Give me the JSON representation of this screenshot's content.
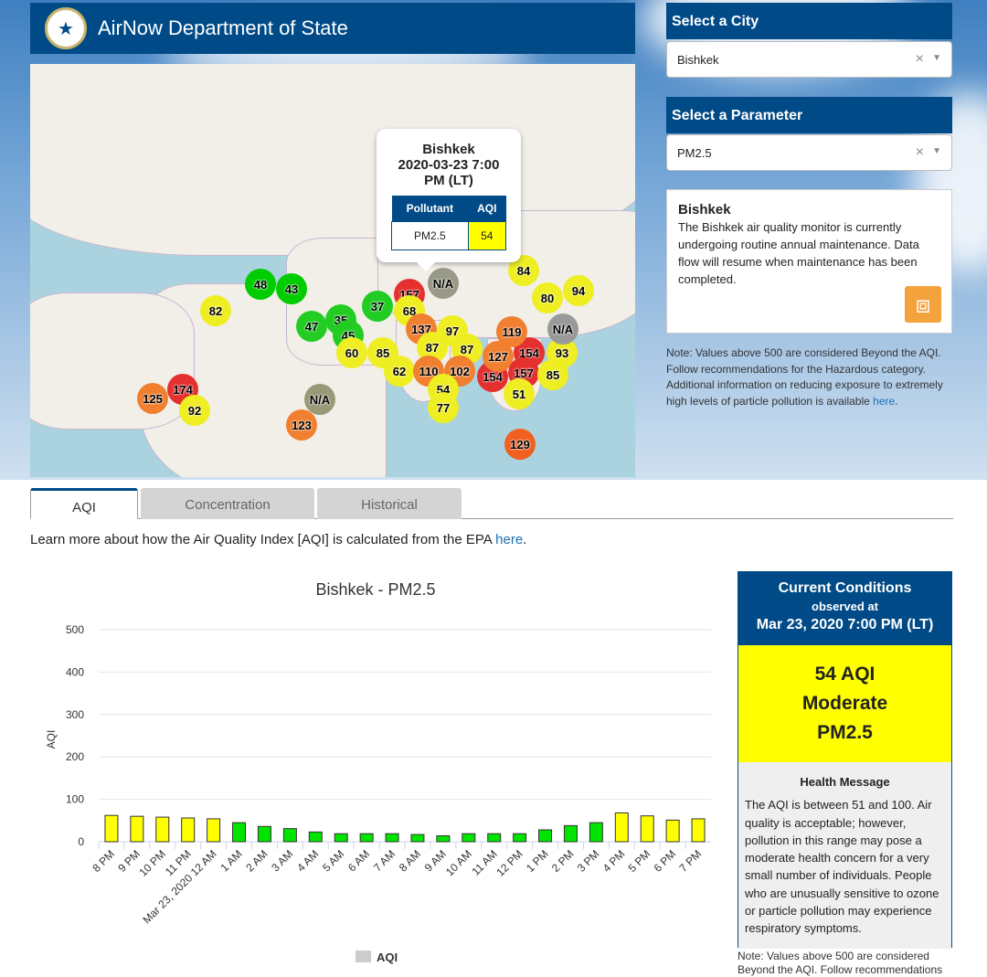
{
  "header": {
    "title": "AirNow Department of State",
    "logo": "department-of-state-seal"
  },
  "city_select": {
    "label": "Select a City",
    "value": "Bishkek"
  },
  "parameter_select": {
    "label": "Select a Parameter",
    "value": "PM2.5"
  },
  "info": {
    "title": "Bishkek",
    "text": "The Bishkek air quality monitor is currently undergoing routine annual maintenance. Data flow will resume when maintenance has been completed.",
    "icon": "rss-icon"
  },
  "note": {
    "text": "Note: Values above 500 are considered Beyond the AQI. Follow recommendations for the Hazardous category. Additional information on reducing exposure to extremely high levels of particle pollution is available ",
    "link": "here",
    "end": "."
  },
  "popup": {
    "city": "Bishkek",
    "datetime": "2020-03-23 7:00 PM (LT)",
    "col_pollutant": "Pollutant",
    "col_aqi": "AQI",
    "pollutant": "PM2.5",
    "aqi": "54",
    "aqi_color": "#ffff00"
  },
  "map_markers": [
    {
      "v": "48",
      "c": "#00cc00"
    },
    {
      "v": "43",
      "c": "#00cc00"
    },
    {
      "v": "82",
      "c": "#eeee22"
    },
    {
      "v": "37",
      "c": "#22cc22"
    },
    {
      "v": "47",
      "c": "#22cc22"
    },
    {
      "v": "35",
      "c": "#22cc22"
    },
    {
      "v": "45",
      "c": "#22cc22"
    },
    {
      "v": "60",
      "c": "#eeee22"
    },
    {
      "v": "85",
      "c": "#eeee22"
    },
    {
      "v": "157",
      "c": "#e53030"
    },
    {
      "v": "N/A",
      "c": "#999988"
    },
    {
      "v": "68",
      "c": "#eeee22"
    },
    {
      "v": "137",
      "c": "#f08030"
    },
    {
      "v": "97",
      "c": "#eeee22"
    },
    {
      "v": "87",
      "c": "#eeee22"
    },
    {
      "v": "87",
      "c": "#eeee22"
    },
    {
      "v": "62",
      "c": "#eeee22"
    },
    {
      "v": "110",
      "c": "#f08030"
    },
    {
      "v": "102",
      "c": "#f08030"
    },
    {
      "v": "54",
      "c": "#eeee22"
    },
    {
      "v": "77",
      "c": "#eeee22"
    },
    {
      "v": "154",
      "c": "#e53030"
    },
    {
      "v": "127",
      "c": "#f08030"
    },
    {
      "v": "154",
      "c": "#e53030"
    },
    {
      "v": "157",
      "c": "#e53030"
    },
    {
      "v": "85",
      "c": "#eeee22"
    },
    {
      "v": "93",
      "c": "#eeee22"
    },
    {
      "v": "51",
      "c": "#eeee22"
    },
    {
      "v": "119",
      "c": "#f08030"
    },
    {
      "v": "84",
      "c": "#eeee22"
    },
    {
      "v": "80",
      "c": "#eeee22"
    },
    {
      "v": "94",
      "c": "#eeee22"
    },
    {
      "v": "N/A",
      "c": "#999999"
    },
    {
      "v": "129",
      "c": "#f06020"
    },
    {
      "v": "174",
      "c": "#e53030"
    },
    {
      "v": "125",
      "c": "#f08030"
    },
    {
      "v": "92",
      "c": "#eeee22"
    },
    {
      "v": "N/A",
      "c": "#999977"
    },
    {
      "v": "123",
      "c": "#f08030"
    }
  ],
  "tabs": [
    {
      "label": "AQI",
      "active": true
    },
    {
      "label": "Concentration"
    },
    {
      "label": "Historical"
    }
  ],
  "learn": {
    "text": "Learn more about how the Air Quality Index [AQI] is calculated from the EPA ",
    "link": "here",
    "end": "."
  },
  "chart_data": {
    "type": "bar",
    "title": "Bishkek - PM2.5",
    "ylabel": "AQI",
    "xlabel": "",
    "ylim": [
      0,
      500
    ],
    "yticks": [
      0,
      100,
      200,
      300,
      400,
      500
    ],
    "grid": true,
    "legend": "bottom",
    "categories": [
      "8 PM",
      "9 PM",
      "10 PM",
      "11 PM",
      "Mar 23, 2020 12 AM",
      "1 AM",
      "2 AM",
      "3 AM",
      "4 AM",
      "5 AM",
      "6 AM",
      "7 AM",
      "8 AM",
      "9 AM",
      "10 AM",
      "11 AM",
      "12 PM",
      "1 PM",
      "2 PM",
      "3 PM",
      "4 PM",
      "5 PM",
      "6 PM",
      "7 PM"
    ],
    "series": [
      {
        "name": "AQI",
        "values": [
          62,
          60,
          58,
          56,
          54,
          45,
          36,
          31,
          23,
          19,
          19,
          19,
          17,
          14,
          19,
          19,
          19,
          28,
          38,
          45,
          68,
          61,
          51,
          54
        ]
      }
    ],
    "colors": {
      "good": "#00e400",
      "moderate": "#ffff00"
    }
  },
  "current": {
    "title": "Current Conditions",
    "observed": "observed at",
    "datetime": "Mar 23, 2020 7:00 PM (LT)",
    "aqi": "54 AQI",
    "category": "Moderate",
    "param": "PM2.5",
    "health_title": "Health Message",
    "health_text": "The AQI is between 51 and 100. Air quality is acceptable; however, pollution in this range may pose a moderate health concern for a very small number of individuals. People who are unusually sensitive to ozone or particle pollution may experience respiratory symptoms."
  },
  "note2": "Note: Values above 500 are considered Beyond the AQI. Follow recommendations"
}
